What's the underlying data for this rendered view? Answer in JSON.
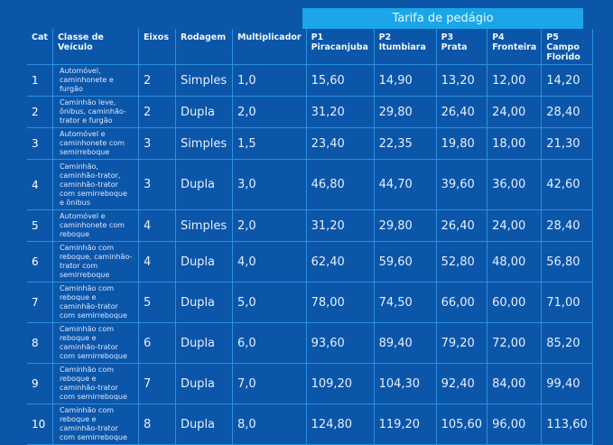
{
  "tarifa_header": "Tarifa de pedágio",
  "columns": [
    "Cat",
    "Classe de Veículo",
    "Eixos",
    "Rodagem",
    "Multiplicador",
    "P1 Piracanjuba",
    "P2 Itumbiara",
    "P3 Prata",
    "P4 Fronteira",
    "P5 Campo Florido"
  ],
  "rows": [
    {
      "cat": "1",
      "classe": "Automóvel, caminhonete e furgão",
      "eixos": "2",
      "rodagem": "Simples",
      "mult": "1,0",
      "p1": "15,60",
      "p2": "14,90",
      "p3": "13,20",
      "p4": "12,00",
      "p5": "14,20"
    },
    {
      "cat": "2",
      "classe": "Caminhão leve, ônibus, caminhão-trator e furgão",
      "eixos": "2",
      "rodagem": "Dupla",
      "mult": "2,0",
      "p1": "31,20",
      "p2": "29,80",
      "p3": "26,40",
      "p4": "24,00",
      "p5": "28,40"
    },
    {
      "cat": "3",
      "classe": "Automóvel e caminhonete com semirreboque",
      "eixos": "3",
      "rodagem": "Simples",
      "mult": "1,5",
      "p1": "23,40",
      "p2": "22,35",
      "p3": "19,80",
      "p4": "18,00",
      "p5": "21,30"
    },
    {
      "cat": "4",
      "classe": "Caminhão, caminhão-trator, caminhão-trator com semirreboque e ônibus",
      "eixos": "3",
      "rodagem": "Dupla",
      "mult": "3,0",
      "p1": "46,80",
      "p2": "44,70",
      "p3": "39,60",
      "p4": "36,00",
      "p5": "42,60"
    },
    {
      "cat": "5",
      "classe": "Automóvel e caminhonete com reboque",
      "eixos": "4",
      "rodagem": "Simples",
      "mult": "2,0",
      "p1": "31,20",
      "p2": "29,80",
      "p3": "26,40",
      "p4": "24,00",
      "p5": "28,40"
    },
    {
      "cat": "6",
      "classe": "Caminhão com reboque, caminhão-trator com semirreboque",
      "eixos": "4",
      "rodagem": "Dupla",
      "mult": "4,0",
      "p1": "62,40",
      "p2": "59,60",
      "p3": "52,80",
      "p4": "48,00",
      "p5": "56,80"
    },
    {
      "cat": "7",
      "classe": "Caminhão com reboque e caminhão-trator com semirreboque",
      "eixos": "5",
      "rodagem": "Dupla",
      "mult": "5,0",
      "p1": "78,00",
      "p2": "74,50",
      "p3": "66,00",
      "p4": "60,00",
      "p5": "71,00"
    },
    {
      "cat": "8",
      "classe": "Caminhão com reboque e caminhão-trator com semirreboque",
      "eixos": "6",
      "rodagem": "Dupla",
      "mult": "6,0",
      "p1": "93,60",
      "p2": "89,40",
      "p3": "79,20",
      "p4": "72,00",
      "p5": "85,20"
    },
    {
      "cat": "9",
      "classe": "Caminhão com reboque e caminhão-trator com semirreboque",
      "eixos": "7",
      "rodagem": "Dupla",
      "mult": "7,0",
      "p1": "109,20",
      "p2": "104,30",
      "p3": "92,40",
      "p4": "84,00",
      "p5": "99,40"
    },
    {
      "cat": "10",
      "classe": "Caminhão com reboque e caminhão-trator com semirreboque",
      "eixos": "8",
      "rodagem": "Dupla",
      "mult": "8,0",
      "p1": "124,80",
      "p2": "119,20",
      "p3": "105,60",
      "p4": "96,00",
      "p5": "113,60"
    }
  ]
}
